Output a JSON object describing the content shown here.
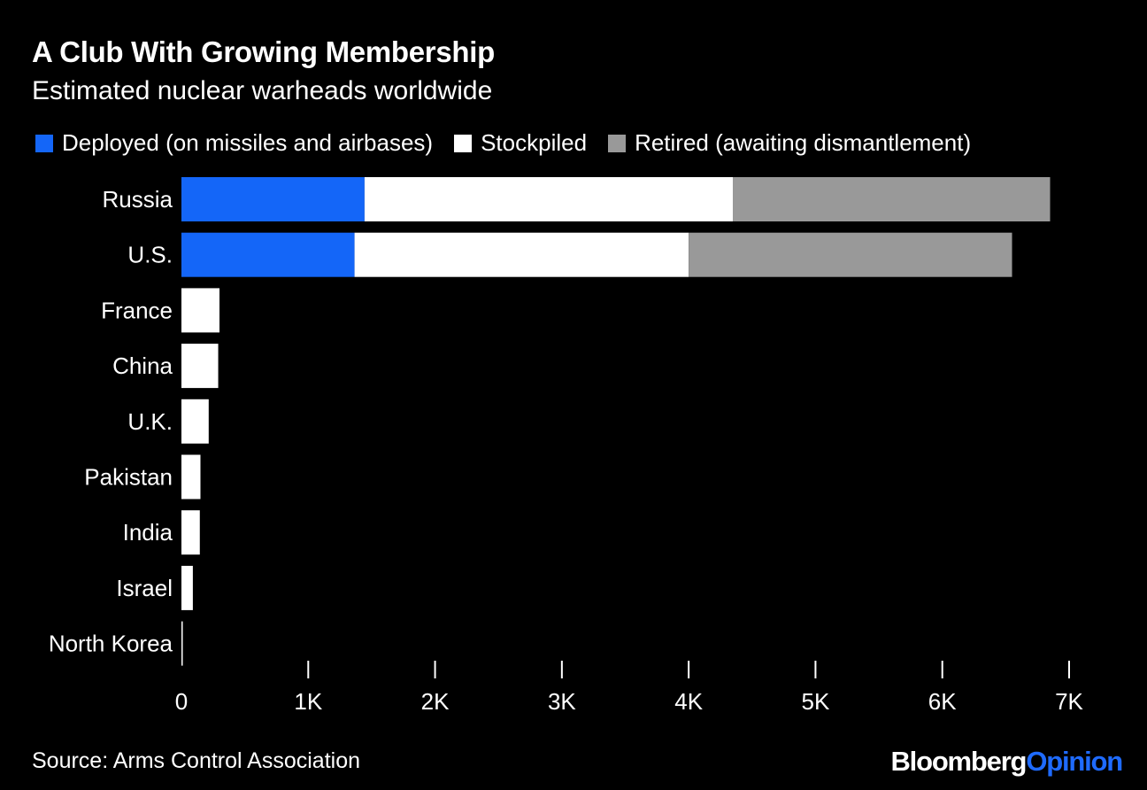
{
  "header": {
    "title": "A Club With Growing Membership",
    "subtitle": "Estimated nuclear warheads worldwide"
  },
  "legend": [
    {
      "label": "Deployed (on missiles and airbases)",
      "color": "#1466f8"
    },
    {
      "label": "Stockpiled",
      "color": "#ffffff"
    },
    {
      "label": "Retired (awaiting dismantlement)",
      "color": "#999999"
    }
  ],
  "footer": {
    "source": "Source: Arms Control Association",
    "brand_main": "Bloomberg",
    "brand_accent": "Opinion"
  },
  "chart_data": {
    "type": "bar",
    "orientation": "horizontal",
    "stacked": true,
    "title": "A Club With Growing Membership",
    "subtitle": "Estimated nuclear warheads worldwide",
    "categories": [
      "Russia",
      "U.S.",
      "France",
      "China",
      "U.K.",
      "Pakistan",
      "India",
      "Israel",
      "North Korea"
    ],
    "series": [
      {
        "name": "Deployed (on missiles and airbases)",
        "color": "#1466f8",
        "values": [
          1444,
          1365,
          0,
          0,
          0,
          0,
          0,
          0,
          0
        ]
      },
      {
        "name": "Stockpiled",
        "color": "#ffffff",
        "values": [
          2906,
          2635,
          300,
          290,
          215,
          150,
          145,
          90,
          10
        ]
      },
      {
        "name": "Retired (awaiting dismantlement)",
        "color": "#999999",
        "values": [
          2500,
          2550,
          0,
          0,
          0,
          0,
          0,
          0,
          0
        ]
      }
    ],
    "xlim": [
      0,
      7000
    ],
    "xticks": [
      0,
      1000,
      2000,
      3000,
      4000,
      5000,
      6000,
      7000
    ],
    "xtick_labels": [
      "0",
      "1K",
      "2K",
      "3K",
      "4K",
      "5K",
      "6K",
      "7K"
    ],
    "grid": false,
    "legend_position": "top"
  }
}
